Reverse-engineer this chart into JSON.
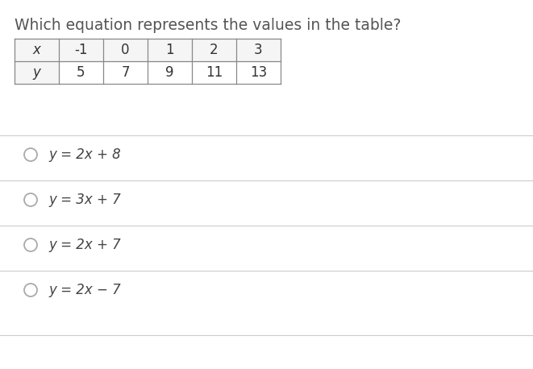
{
  "title": "Which equation represents the values in the table?",
  "title_color": "#555555",
  "title_fontsize": 13.5,
  "bg_color": "#ffffff",
  "table_x_labels": [
    "x",
    "-1",
    "0",
    "1",
    "2",
    "3"
  ],
  "table_y_labels": [
    "y",
    "5",
    "7",
    "9",
    "11",
    "13"
  ],
  "options": [
    "y = 2x + 8",
    "y = 3x + 7",
    "y = 2x + 7",
    "y = 2x − 7"
  ],
  "option_fontsize": 12,
  "option_color": "#444444",
  "divider_color": "#cccccc",
  "circle_color": "#aaaaaa",
  "table_line_color": "#888888",
  "table_font_color": "#333333",
  "table_fontsize": 12,
  "label_style": "italic"
}
